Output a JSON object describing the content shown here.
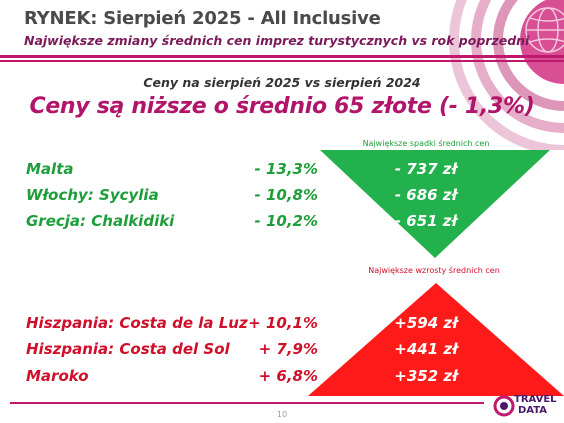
{
  "header": {
    "title": "RYNEK: Sierpień 2025 - All Inclusive",
    "subtitle": "Największe zmiany średnich cen imprez turystycznych vs rok poprzedni"
  },
  "main": {
    "comparison": "Ceny na sierpień 2025 vs sierpień 2024",
    "headline": "Ceny są niższe o średnio 65 złote (- 1,3%)"
  },
  "decreases": {
    "caption": "Największe spadki średnich cen",
    "color": "#22b14c",
    "items": [
      {
        "label": "Malta",
        "pct": "- 13,3%",
        "value": "- 737 zł"
      },
      {
        "label": "Włochy: Sycylia",
        "pct": "- 10,8%",
        "value": "- 686 zł"
      },
      {
        "label": "Grecja: Chalkidiki",
        "pct": "- 10,2%",
        "value": "- 651 zł"
      }
    ]
  },
  "increases": {
    "caption": "Największe wzrosty średnich cen",
    "color": "#ff1a1a",
    "items": [
      {
        "label": "Hiszpania: Costa de la Luz",
        "pct": "+ 10,1%",
        "value": "+594 zł"
      },
      {
        "label": "Hiszpania: Costa del Sol",
        "pct": "+ 7,9%",
        "value": "+441 zł"
      },
      {
        "label": "Maroko",
        "pct": "+ 6,8%",
        "value": "+352 zł"
      }
    ]
  },
  "footer": {
    "page_number": "10",
    "logo_line1": "TRAVEL",
    "logo_line2": "DATA"
  }
}
